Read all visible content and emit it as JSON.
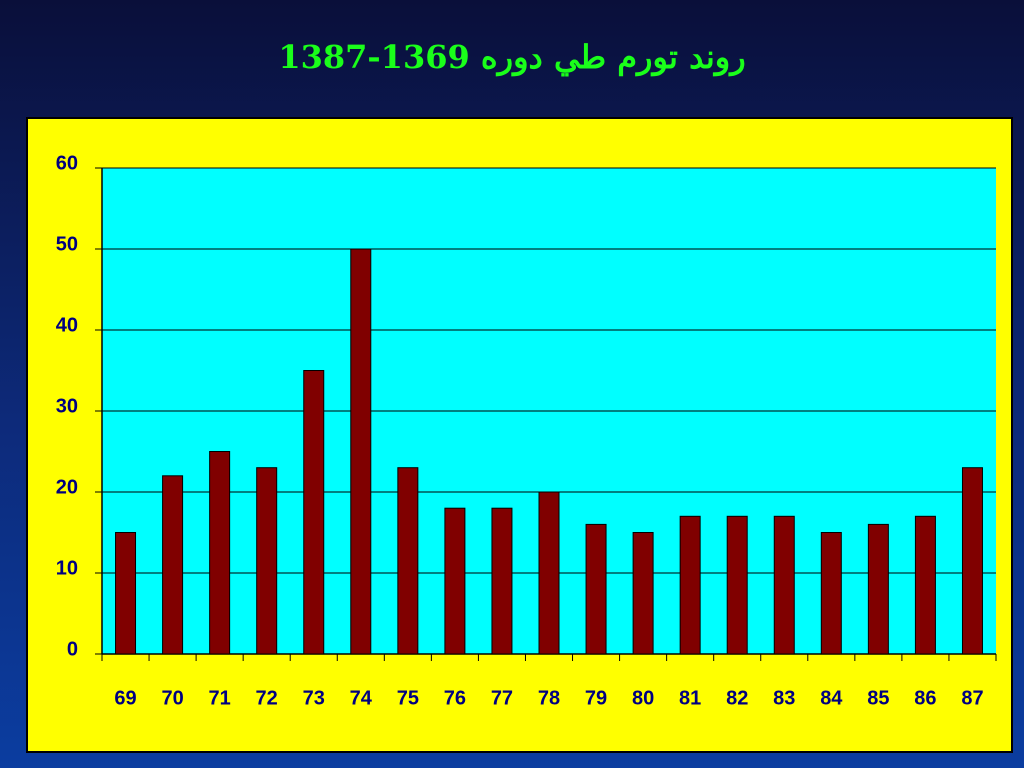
{
  "chart_data": {
    "type": "bar",
    "title": "روند تورم طي دوره 1369-1387",
    "categories": [
      "69",
      "70",
      "71",
      "72",
      "73",
      "74",
      "75",
      "76",
      "77",
      "78",
      "79",
      "80",
      "81",
      "82",
      "83",
      "84",
      "85",
      "86",
      "87"
    ],
    "values": [
      15,
      22,
      25,
      23,
      35,
      50,
      23,
      18,
      18,
      20,
      16,
      15,
      17,
      17,
      17,
      15,
      16,
      17,
      23
    ],
    "color": "#800000",
    "ylim": [
      0,
      60
    ],
    "yticks": [
      0,
      10,
      20,
      30,
      40,
      50,
      60
    ],
    "grid": true
  }
}
